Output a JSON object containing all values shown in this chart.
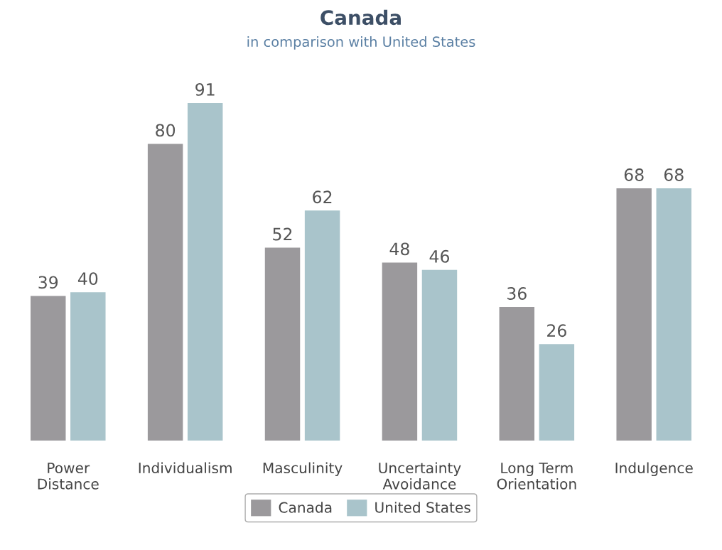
{
  "chart_data": {
    "type": "bar",
    "title": "Canada",
    "subtitle": "in comparison with United States",
    "categories": [
      "Power\nDistance",
      "Individualism",
      "Masculinity",
      "Uncertainty\nAvoidance",
      "Long Term\nOrientation",
      "Indulgence"
    ],
    "series": [
      {
        "name": "Canada",
        "color": "#9b999c",
        "values": [
          39,
          80,
          52,
          48,
          36,
          68
        ]
      },
      {
        "name": "United States",
        "color": "#a9c4cb",
        "values": [
          40,
          91,
          62,
          46,
          26,
          68
        ]
      }
    ],
    "data_labels": true,
    "legend": "bottom",
    "grid": false,
    "tick_labels": "x"
  }
}
